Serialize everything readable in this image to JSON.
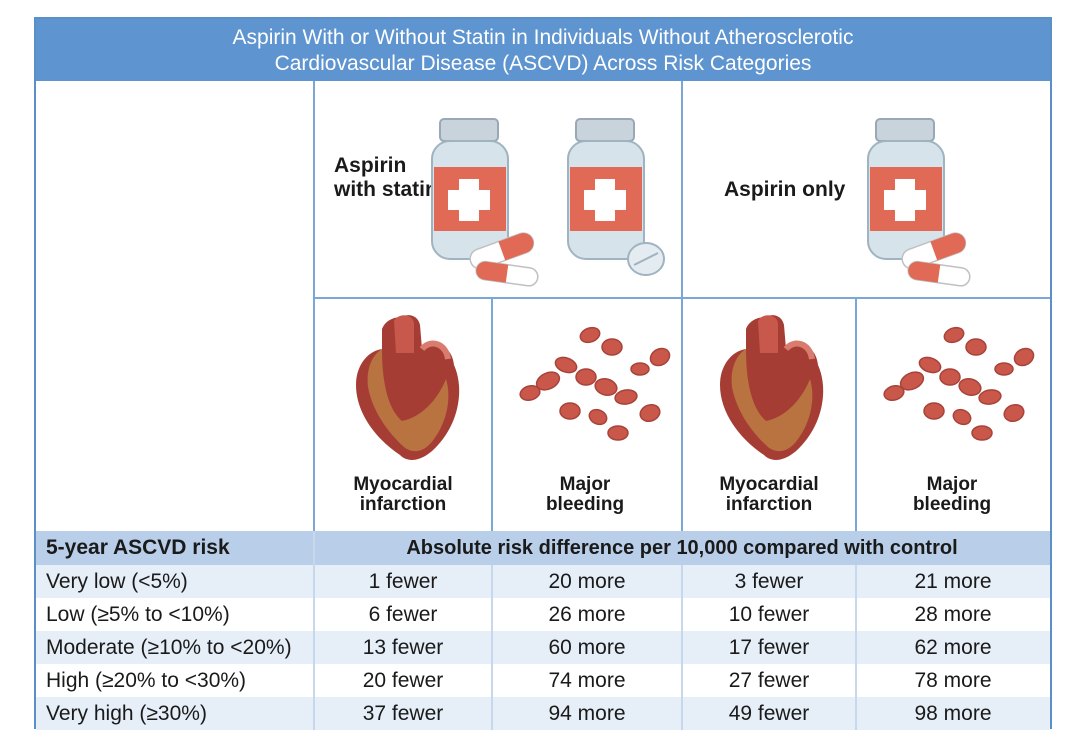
{
  "title": {
    "line1": "Aspirin With or Without Statin in Individuals Without Atherosclerotic",
    "line2": "Cardiovascular Disease (ASCVD) Across Risk Categories"
  },
  "groups": {
    "aspirin_statin": "Aspirin with statin",
    "aspirin_only": "Aspirin only"
  },
  "outcomes": {
    "mi": "Myocardial infarction",
    "bleeding": "Major bleeding"
  },
  "table": {
    "risk_header": "5-year ASCVD risk",
    "diff_header": "Absolute risk difference per 10,000 compared with control",
    "rows": [
      {
        "risk": "Very low (<5%)",
        "as_mi": "1 fewer",
        "as_bleed": "20 more",
        "ao_mi": "3 fewer",
        "ao_bleed": "21 more"
      },
      {
        "risk": "Low (≥5% to <10%)",
        "as_mi": "6 fewer",
        "as_bleed": "26 more",
        "ao_mi": "10 fewer",
        "ao_bleed": "28 more"
      },
      {
        "risk": "Moderate (≥10% to <20%)",
        "as_mi": "13 fewer",
        "as_bleed": "60 more",
        "ao_mi": "17 fewer",
        "ao_bleed": "62 more"
      },
      {
        "risk": "High (≥20% to <30%)",
        "as_mi": "20 fewer",
        "as_bleed": "74 more",
        "ao_mi": "27 fewer",
        "ao_bleed": "78 more"
      },
      {
        "risk": "Very high (≥30%)",
        "as_mi": "37 fewer",
        "as_bleed": "94 more",
        "ao_mi": "49 fewer",
        "ao_bleed": "98 more"
      }
    ]
  },
  "icons": [
    "pill-bottle-icon",
    "capsule-icon",
    "tablet-icon",
    "heart-icon",
    "blood-cells-icon"
  ],
  "colors": {
    "title_bg": "#5e94cf",
    "header_bg": "#b9cfe9",
    "row_alt_bg": "#e6eef8",
    "bottle_label": "#e06a55",
    "blood_cell": "#c9574a"
  }
}
